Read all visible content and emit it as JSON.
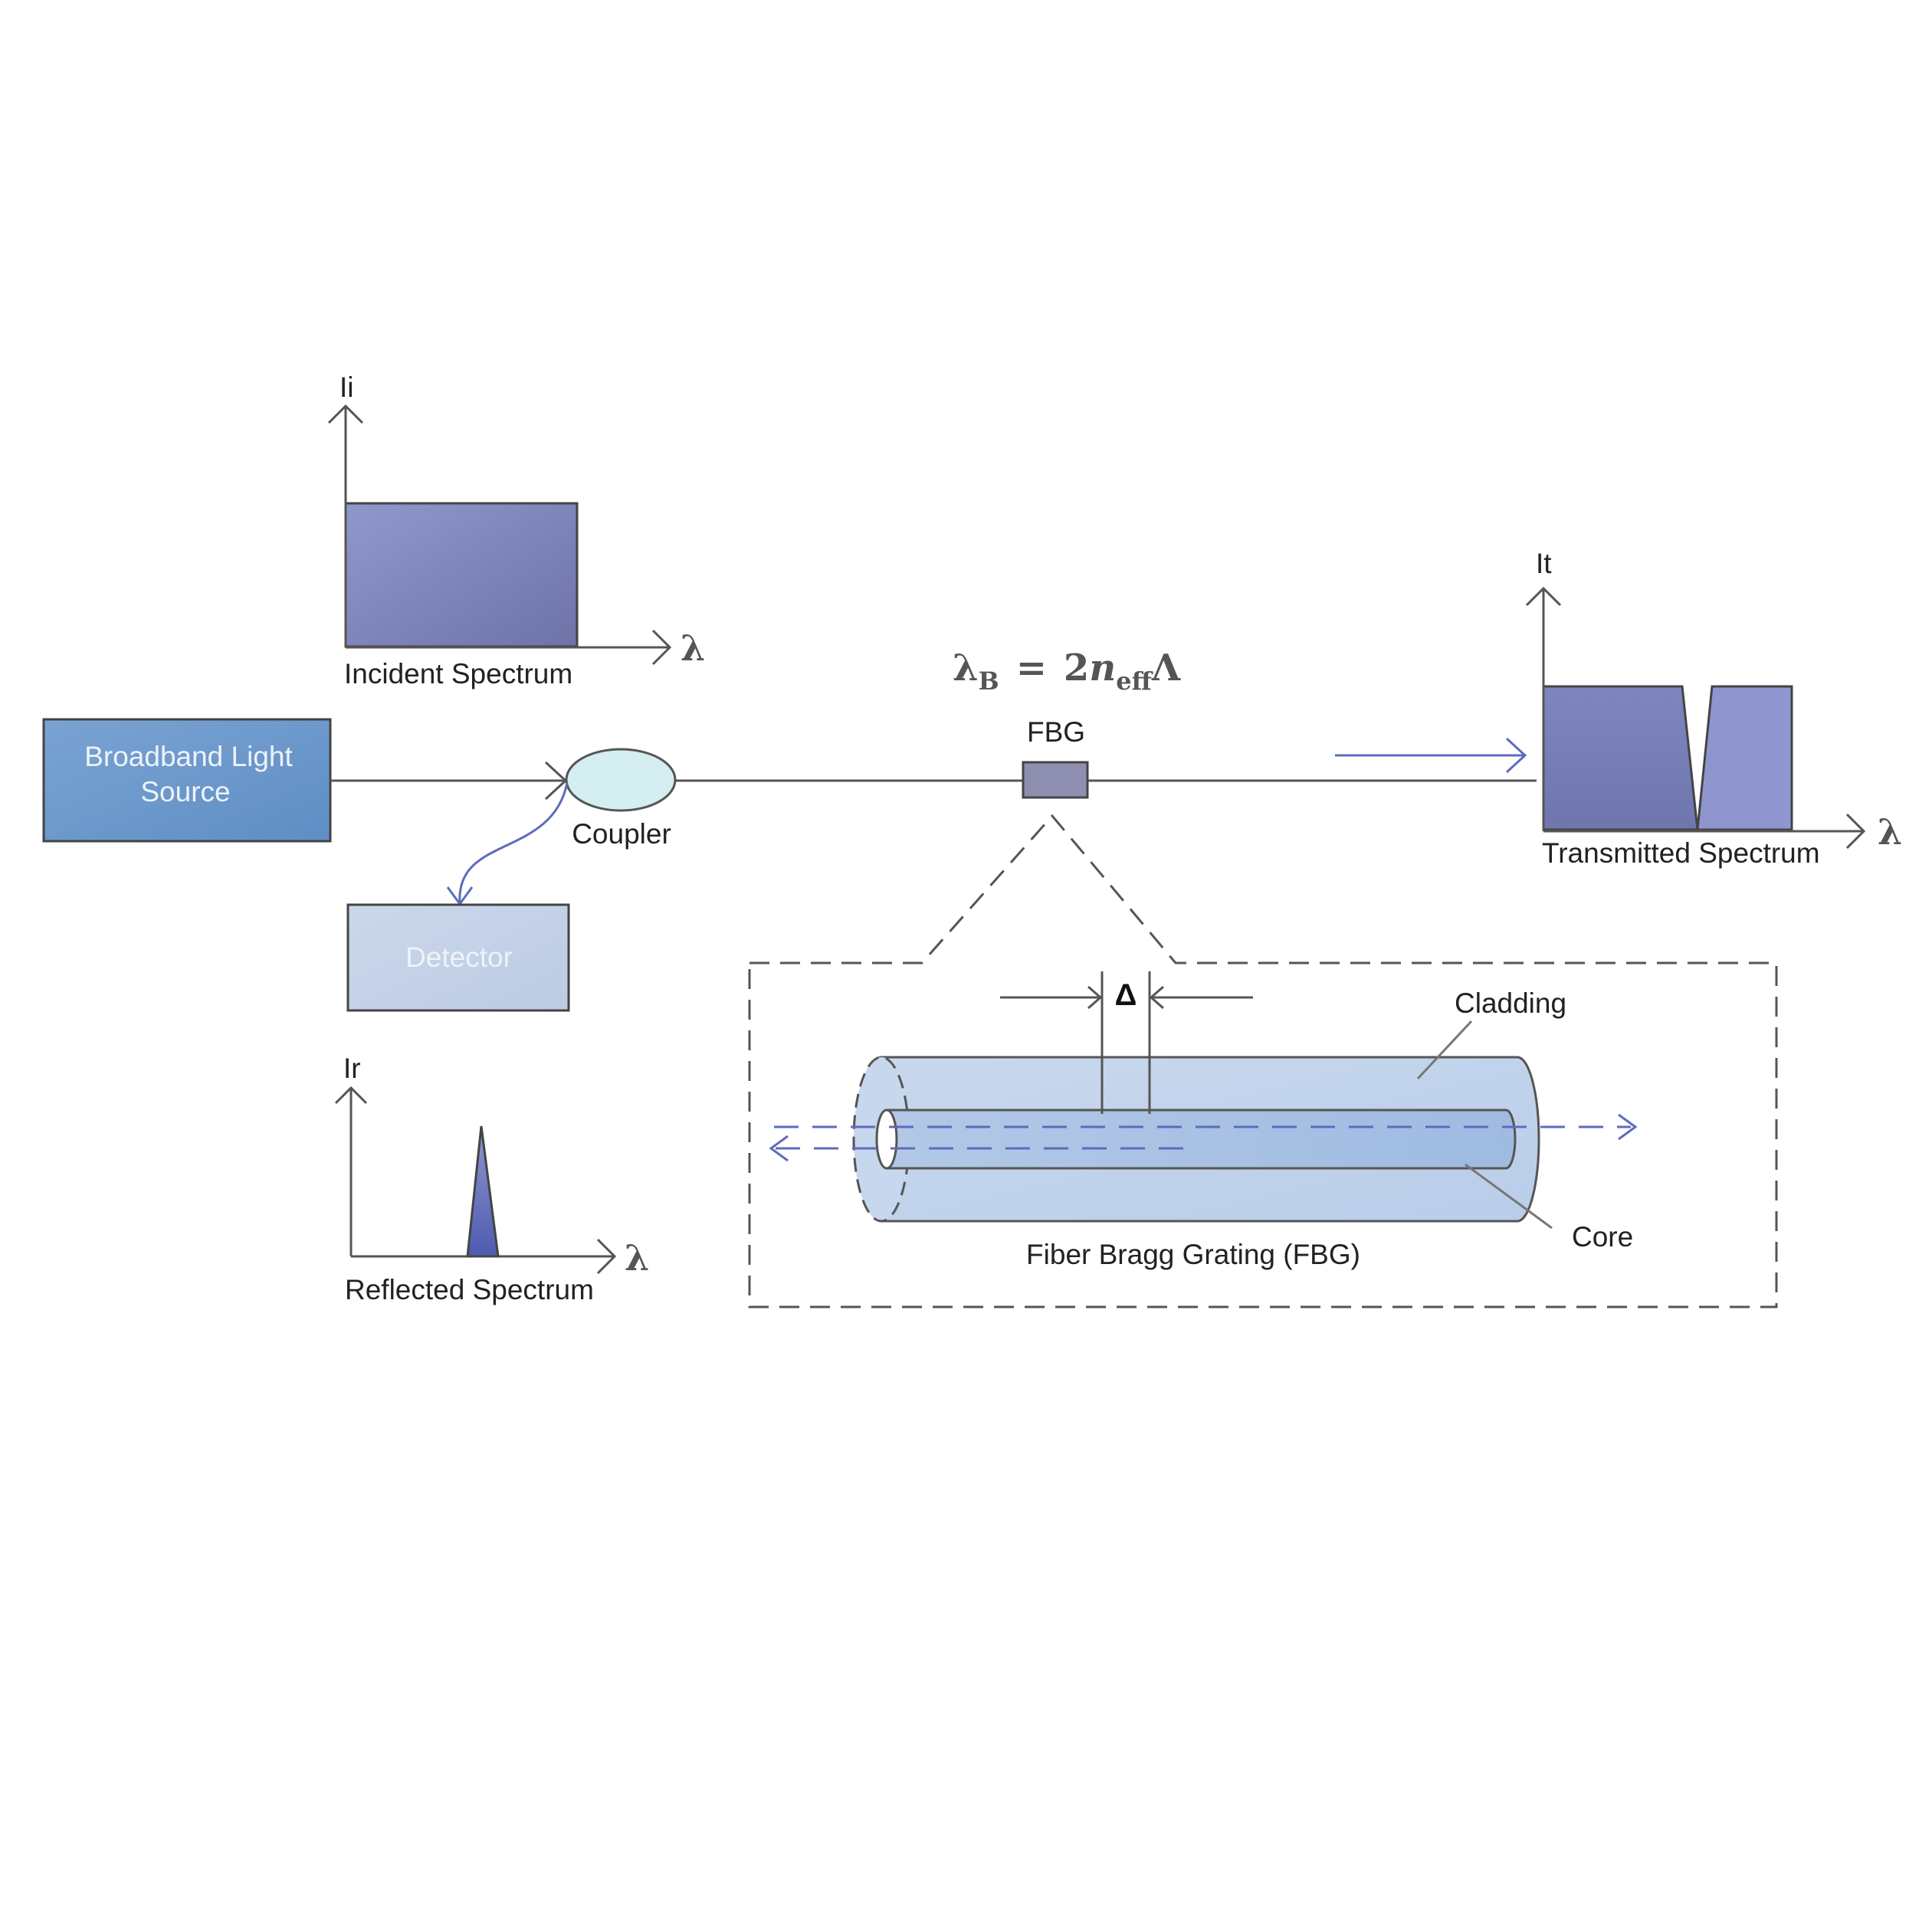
{
  "incident": {
    "axis_y": "Ii",
    "axis_x": "λ",
    "caption": "Incident Spectrum"
  },
  "transmitted": {
    "axis_y": "It",
    "axis_x": "λ",
    "caption": "Transmitted Spectrum"
  },
  "reflected": {
    "axis_y": "Ir",
    "axis_x": "λ",
    "caption": "Reflected Spectrum"
  },
  "source": {
    "line1": "Broadband Light",
    "line2": "Source"
  },
  "coupler": {
    "label": "Coupler"
  },
  "detector": {
    "label": "Detector"
  },
  "fbg": {
    "label": "FBG"
  },
  "equation": {
    "lambda": "λ",
    "sub_b": "B",
    "equals": "=",
    "factor": "2",
    "n": "n",
    "sub_eff": "eff",
    "period": "Λ"
  },
  "inset": {
    "delta": "Δ",
    "cladding": "Cladding",
    "core": "Core",
    "caption": "Fiber Bragg Grating (FBG)"
  },
  "colors": {
    "spectrum_fill": "#7d86bd",
    "source_fill": "#6f9bcf",
    "detector_fill": "#c5d3e8",
    "coupler_fill": "#d4eef1",
    "fiber_fill": "#c3d4ec",
    "core_fill": "#a9c2e4",
    "arrow_blue": "#5d6bbd",
    "line": "#555555"
  }
}
